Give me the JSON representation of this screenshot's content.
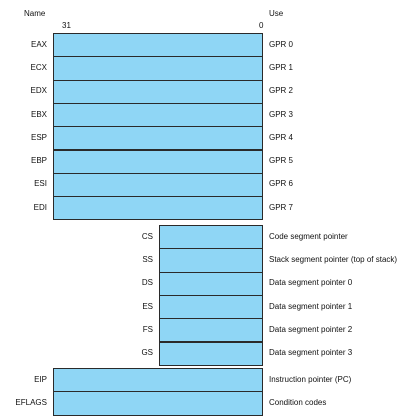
{
  "headers": {
    "name": "Name",
    "use": "Use",
    "bit_high": "31",
    "bit_low": "0"
  },
  "colors": {
    "register_fill": "#8fd6f5",
    "register_border": "#2a2a2a"
  },
  "gpr_registers": [
    {
      "name": "EAX",
      "use": "GPR 0"
    },
    {
      "name": "ECX",
      "use": "GPR 1"
    },
    {
      "name": "EDX",
      "use": "GPR 2"
    },
    {
      "name": "EBX",
      "use": "GPR 3"
    },
    {
      "name": "ESP",
      "use": "GPR 4"
    },
    {
      "name": "EBP",
      "use": "GPR 5"
    },
    {
      "name": "ESI",
      "use": "GPR 6"
    },
    {
      "name": "EDI",
      "use": "GPR 7"
    }
  ],
  "segment_registers": [
    {
      "name": "CS",
      "use": "Code segment pointer"
    },
    {
      "name": "SS",
      "use": "Stack segment pointer (top of stack)"
    },
    {
      "name": "DS",
      "use": "Data segment pointer 0"
    },
    {
      "name": "ES",
      "use": "Data segment pointer 1"
    },
    {
      "name": "FS",
      "use": "Data segment pointer 2"
    },
    {
      "name": "GS",
      "use": "Data segment pointer 3"
    }
  ],
  "special_registers": [
    {
      "name": "EIP",
      "use": "Instruction pointer (PC)"
    },
    {
      "name": "EFLAGS",
      "use": "Condition codes"
    }
  ]
}
